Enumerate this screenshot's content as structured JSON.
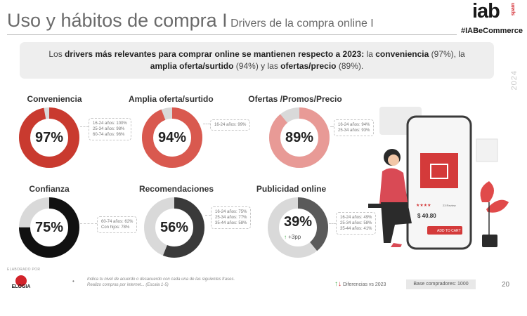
{
  "header": {
    "title_main": "Uso y hábitos de compra I",
    "title_sub": "Drivers de la compra online I",
    "logo_text": "iab",
    "logo_country": "spain",
    "hashtag": "#IABeCommerce",
    "year": "2024"
  },
  "intro": {
    "t1": "Los ",
    "b1": "drivers más relevantes para comprar online se mantienen respecto a 2023:",
    "t2": " la ",
    "b2": "conveniencia",
    "t3": " (97%), la",
    "b3": "amplia oferta/surtido",
    "t4": " (94%) y las ",
    "b4": "ofertas/precio",
    "t5": " (89%)."
  },
  "donuts": [
    {
      "label": "Conveniencia",
      "value_text": "97%",
      "value": 97,
      "color": "#c93a2f",
      "notes": [
        "16-24 años: 100%",
        "25-34 años: 98%",
        "60-74 años: 96%"
      ]
    },
    {
      "label": "Amplia oferta/surtido",
      "value_text": "94%",
      "value": 94,
      "color": "#d9594f",
      "notes": [
        "16-24 años: 99%"
      ]
    },
    {
      "label": "Ofertas /Promos/Precio",
      "value_text": "89%",
      "value": 89,
      "color": "#e89a96",
      "notes": [
        "16-24 años: 94%",
        "25-34 años: 93%"
      ]
    },
    {
      "label": "Confianza",
      "value_text": "75%",
      "value": 75,
      "color": "#111111",
      "notes": [
        "60-74 años: 62%",
        "Con hijos: 78%"
      ]
    },
    {
      "label": "Recomendaciones",
      "value_text": "56%",
      "value": 56,
      "color": "#3a3a3a",
      "notes": [
        "16-24 años: 75%",
        "25-34 años: 77%",
        "35-44 años: 58%"
      ]
    },
    {
      "label": "Publicidad online",
      "value_text": "39%",
      "value": 39,
      "color": "#5a5a5a",
      "change": "+3pp",
      "notes": [
        "16-24 años: 49%",
        "25-34 años: 58%",
        "35-44 años: 41%"
      ]
    }
  ],
  "illustration": {
    "price": "$ 40.80",
    "add_to_cart": "ADD TO CART",
    "reviews": "23 Review"
  },
  "footer": {
    "credit": "ELABORADO POR",
    "agency": "ELOGIA",
    "bullet": "•",
    "question_line1": "Indica tu nivel de acuerdo o desacuerdo con cada una de las siguientes frases.",
    "question_line2": "Realizo compras por internet... (Escala 1-5)",
    "legend_up": "↑",
    "legend_down": "↓",
    "legend_label": "Diferencias vs 2023",
    "base": "Base compradores: 1000",
    "page": "20"
  },
  "colors": {
    "track": "#d9d9d9",
    "brand_red": "#d2232a"
  }
}
